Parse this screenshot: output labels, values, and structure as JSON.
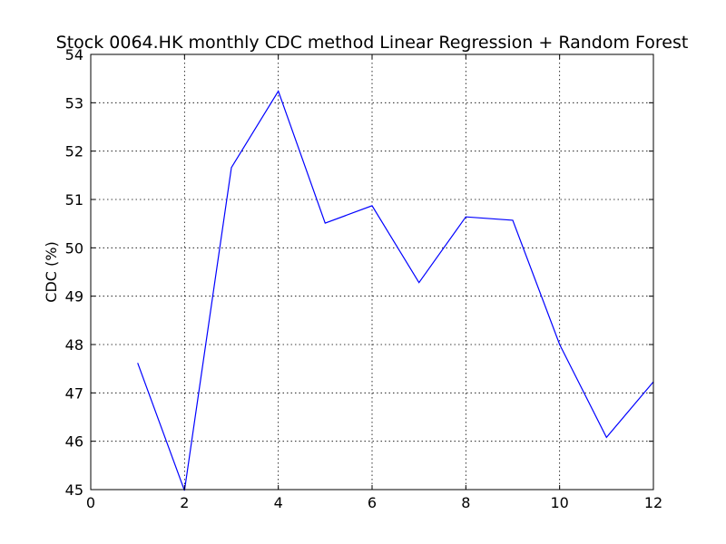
{
  "chart_data": {
    "type": "line",
    "title": "Stock 0064.HK monthly CDC method Linear Regression + Random Forest",
    "xlabel": "",
    "ylabel": "CDC (%)",
    "xlim": [
      0,
      12
    ],
    "ylim": [
      45,
      54
    ],
    "xticks": [
      0,
      2,
      4,
      6,
      8,
      10,
      12
    ],
    "yticks": [
      45,
      46,
      47,
      48,
      49,
      50,
      51,
      52,
      53,
      54
    ],
    "grid": true,
    "series": [
      {
        "color": "#0000ff",
        "x": [
          1,
          2,
          3,
          4,
          5,
          6,
          7,
          8,
          9,
          10,
          11,
          12
        ],
        "y": [
          47.62,
          44.98,
          51.66,
          53.24,
          50.51,
          50.87,
          49.28,
          50.64,
          50.57,
          48.0,
          46.08,
          47.23
        ]
      }
    ]
  }
}
